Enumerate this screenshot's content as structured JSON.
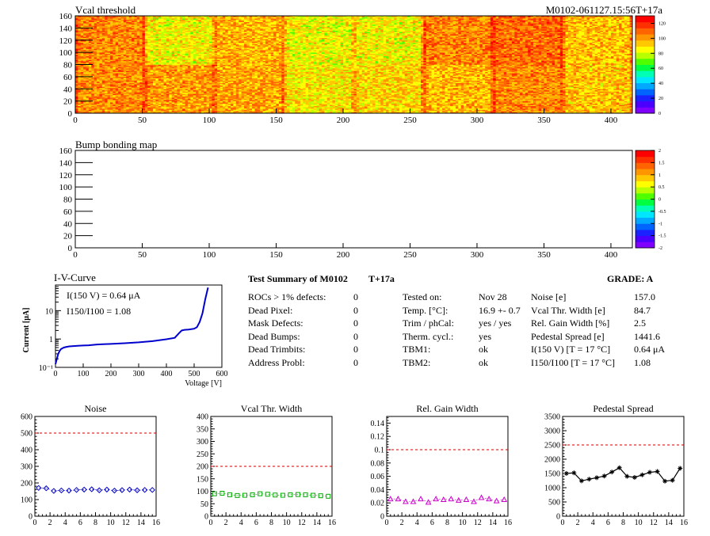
{
  "header": {
    "map_title": "Vcal threshold",
    "module_id": "M0102-061127.15:56T+17a",
    "bump_title": "Bump bonding map"
  },
  "colors": {
    "palette": [
      "#8000ff",
      "#4b00ff",
      "#1a22ff",
      "#0064ff",
      "#00a8ff",
      "#00e6ff",
      "#00ffb4",
      "#00ff40",
      "#4fff00",
      "#b8ff00",
      "#ffff00",
      "#ffc800",
      "#ff9600",
      "#ff6400",
      "#ff3000",
      "#ff0000"
    ],
    "iv_line": "#0000cc",
    "noise": "#0000cc",
    "vcal": "#00aa00",
    "gain": "#cc00cc",
    "pedestal": "#000000",
    "limit": "#cc0000"
  },
  "summary": {
    "title": "Test Summary of M0102",
    "tag": "T+17a",
    "grade": "GRADE:  A",
    "col1": [
      {
        "label": "ROCs > 1% defects:",
        "value": "0"
      },
      {
        "label": "Dead Pixel:",
        "value": "0"
      },
      {
        "label": "Mask Defects:",
        "value": "0"
      },
      {
        "label": "Dead Bumps:",
        "value": "0"
      },
      {
        "label": "Dead Trimbits:",
        "value": "0"
      },
      {
        "label": "Address Probl:",
        "value": "0"
      }
    ],
    "col2": [
      {
        "label": "Tested on:",
        "value": "Nov 28"
      },
      {
        "label": "Temp. [°C]:",
        "value": "16.9 +- 0.7"
      },
      {
        "label": "Trim / phCal:",
        "value": "yes / yes"
      },
      {
        "label": "Therm. cycl.:",
        "value": "yes"
      },
      {
        "label": "TBM1:",
        "value": "ok"
      },
      {
        "label": "TBM2:",
        "value": "ok"
      }
    ],
    "col3": [
      {
        "label": "Noise [e]",
        "value": "157.0"
      },
      {
        "label": "Vcal Thr. Width [e]",
        "value": "84.7"
      },
      {
        "label": "Rel. Gain Width [%]",
        "value": "2.5"
      },
      {
        "label": "Pedestal Spread [e]",
        "value": "1441.6"
      },
      {
        "label": "I(150 V) [T = 17 °C]",
        "value": "0.64 μA"
      },
      {
        "label": "I150/I100  [T = 17 °C]",
        "value": "1.08"
      }
    ]
  },
  "chart_data": [
    {
      "type": "heatmap",
      "title": "Vcal threshold",
      "xlim": [
        0,
        416
      ],
      "ylim": [
        0,
        160
      ],
      "xticks": [
        0,
        50,
        100,
        150,
        200,
        250,
        300,
        350,
        400
      ],
      "yticks": [
        0,
        20,
        40,
        60,
        80,
        100,
        120,
        140,
        160
      ],
      "zlim": [
        0,
        130
      ],
      "zticks": [
        0,
        20,
        40,
        60,
        80,
        100,
        120
      ],
      "roc_means": [
        [
          104,
          86,
          97,
          85,
          86,
          105,
          109,
          95
        ],
        [
          103,
          101,
          99,
          88,
          92,
          96,
          104,
          94
        ]
      ]
    },
    {
      "type": "heatmap",
      "title": "Bump bonding map",
      "xlim": [
        0,
        416
      ],
      "ylim": [
        0,
        160
      ],
      "xticks": [
        0,
        50,
        100,
        150,
        200,
        250,
        300,
        350,
        400
      ],
      "yticks": [
        0,
        20,
        40,
        60,
        80,
        100,
        120,
        140,
        160
      ],
      "zlim": [
        -2,
        2
      ],
      "zticks": [
        -2,
        -1.5,
        -1,
        -0.5,
        0,
        0.5,
        1,
        1.5,
        2
      ],
      "values": []
    },
    {
      "type": "line",
      "title": "I-V-Curve",
      "xlabel": "Voltage [V]",
      "ylabel": "Current [μA]",
      "xlim": [
        0,
        600
      ],
      "ylim": [
        0.1,
        80
      ],
      "yscale": "log",
      "xticks": [
        0,
        100,
        200,
        300,
        400,
        500,
        600
      ],
      "yticks": [
        {
          "v": 0.1,
          "t": "10⁻¹"
        },
        {
          "v": 1,
          "t": "1"
        },
        {
          "v": 10,
          "t": "10"
        }
      ],
      "annotations": [
        "I(150 V) = 0.64 μA",
        "I150/I100 =  1.08"
      ],
      "x": [
        0,
        5,
        10,
        15,
        20,
        30,
        40,
        50,
        60,
        80,
        100,
        120,
        150,
        200,
        250,
        300,
        350,
        400,
        430,
        445,
        455,
        465,
        480,
        500,
        510,
        520,
        530,
        540,
        550
      ],
      "y": [
        0.13,
        0.2,
        0.3,
        0.38,
        0.44,
        0.5,
        0.53,
        0.55,
        0.56,
        0.58,
        0.59,
        0.6,
        0.64,
        0.67,
        0.71,
        0.76,
        0.84,
        0.98,
        1.1,
        1.6,
        2.0,
        2.1,
        2.15,
        2.3,
        2.6,
        4.0,
        8.0,
        25.0,
        65.0
      ]
    },
    {
      "type": "scatter",
      "title": "Noise",
      "x": [
        0,
        1,
        2,
        3,
        4,
        5,
        6,
        7,
        8,
        9,
        10,
        11,
        12,
        13,
        14,
        15
      ],
      "y": [
        170,
        168,
        152,
        155,
        154,
        158,
        160,
        162,
        156,
        160,
        154,
        157,
        160,
        156,
        158,
        158
      ],
      "xlim": [
        0,
        16
      ],
      "ylim": [
        0,
        600
      ],
      "xticks": [
        0,
        2,
        4,
        6,
        8,
        10,
        12,
        14,
        16
      ],
      "yticks": [
        0,
        100,
        200,
        300,
        400,
        500,
        600
      ],
      "limit": 500,
      "marker": "diamond",
      "connect": false
    },
    {
      "type": "scatter",
      "title": "Vcal Thr. Width",
      "x": [
        0,
        1,
        2,
        3,
        4,
        5,
        6,
        7,
        8,
        9,
        10,
        11,
        12,
        13,
        14,
        15
      ],
      "y": [
        90,
        92,
        86,
        83,
        84,
        86,
        90,
        88,
        85,
        84,
        86,
        87,
        86,
        84,
        82,
        80
      ],
      "xlim": [
        0,
        16
      ],
      "ylim": [
        0,
        400
      ],
      "xticks": [
        0,
        2,
        4,
        6,
        8,
        10,
        12,
        14,
        16
      ],
      "yticks": [
        0,
        50,
        100,
        150,
        200,
        250,
        300,
        350,
        400
      ],
      "limit": 200,
      "marker": "square",
      "connect": false
    },
    {
      "type": "scatter",
      "title": "Rel. Gain Width",
      "x": [
        0,
        1,
        2,
        3,
        4,
        5,
        6,
        7,
        8,
        9,
        10,
        11,
        12,
        13,
        14,
        15
      ],
      "y": [
        0.026,
        0.026,
        0.022,
        0.022,
        0.026,
        0.021,
        0.026,
        0.025,
        0.026,
        0.024,
        0.025,
        0.022,
        0.028,
        0.026,
        0.023,
        0.025
      ],
      "xlim": [
        0,
        16
      ],
      "ylim": [
        0,
        0.15
      ],
      "xticks": [
        0,
        2,
        4,
        6,
        8,
        10,
        12,
        14,
        16
      ],
      "yticks": [
        0,
        0.02,
        0.04,
        0.06,
        0.08,
        0.1,
        0.12,
        0.14
      ],
      "limit": 0.1,
      "marker": "triangle",
      "connect": false
    },
    {
      "type": "line",
      "title": "Pedestal Spread",
      "x": [
        0,
        1,
        2,
        3,
        4,
        5,
        6,
        7,
        8,
        9,
        10,
        11,
        12,
        13,
        14,
        15
      ],
      "y": [
        1500,
        1520,
        1240,
        1300,
        1350,
        1410,
        1550,
        1700,
        1400,
        1360,
        1450,
        1540,
        1570,
        1230,
        1260,
        1680
      ],
      "xlim": [
        0,
        16
      ],
      "ylim": [
        0,
        3500
      ],
      "xticks": [
        0,
        2,
        4,
        6,
        8,
        10,
        12,
        14,
        16
      ],
      "yticks": [
        0,
        500,
        1000,
        1500,
        2000,
        2500,
        3000,
        3500
      ],
      "limit": 2500,
      "marker": "star",
      "connect": true
    }
  ]
}
